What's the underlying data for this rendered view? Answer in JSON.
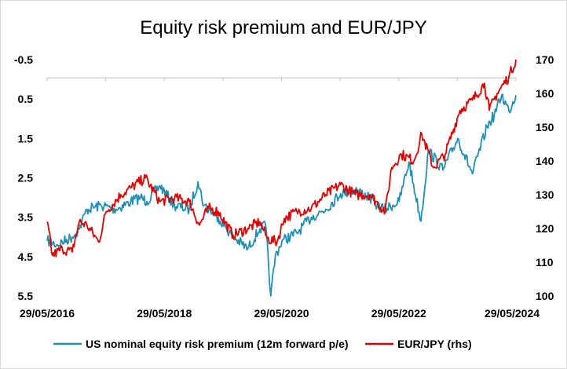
{
  "chart_data": {
    "type": "line",
    "title": "Equity risk premium and EUR/JPY",
    "x_tick_labels": [
      "29/05/2016",
      "29/05/2018",
      "29/05/2020",
      "29/05/2022",
      "29/05/2024"
    ],
    "y_left": {
      "inverted": true,
      "range": [
        -0.5,
        5.5
      ],
      "tick_labels": [
        "-0.5",
        "0.5",
        "1.5",
        "2.5",
        "3.5",
        "4.5",
        "5.5"
      ]
    },
    "y_right": {
      "range": [
        100,
        170
      ],
      "tick_labels": [
        "170",
        "160",
        "150",
        "140",
        "130",
        "120",
        "110",
        "100"
      ]
    },
    "grid": false,
    "legend_position": "bottom",
    "series": [
      {
        "name": "US nominal equity risk premium (12m forward p/e)",
        "axis": "left",
        "color": "#1f8fb4",
        "points": [
          [
            "2016-05-29",
            4.1
          ],
          [
            "2016-08-01",
            4.2
          ],
          [
            "2016-11-01",
            4.0
          ],
          [
            "2016-12-15",
            3.8
          ],
          [
            "2017-02-01",
            3.3
          ],
          [
            "2017-05-01",
            3.2
          ],
          [
            "2017-08-01",
            3.3
          ],
          [
            "2017-11-01",
            3.1
          ],
          [
            "2018-01-01",
            3.0
          ],
          [
            "2018-02-10",
            3.1
          ],
          [
            "2018-05-01",
            2.7
          ],
          [
            "2018-08-01",
            3.2
          ],
          [
            "2018-11-01",
            3.3
          ],
          [
            "2018-12-25",
            2.6
          ],
          [
            "2019-02-01",
            3.2
          ],
          [
            "2019-05-01",
            3.5
          ],
          [
            "2019-08-01",
            4.0
          ],
          [
            "2019-11-01",
            4.3
          ],
          [
            "2020-01-15",
            3.8
          ],
          [
            "2020-02-20",
            3.7
          ],
          [
            "2020-03-23",
            5.5
          ],
          [
            "2020-04-20",
            4.5
          ],
          [
            "2020-06-01",
            4.1
          ],
          [
            "2020-09-01",
            3.9
          ],
          [
            "2020-12-01",
            3.5
          ],
          [
            "2021-03-01",
            3.3
          ],
          [
            "2021-06-01",
            2.9
          ],
          [
            "2021-09-01",
            2.8
          ],
          [
            "2021-12-01",
            3.0
          ],
          [
            "2022-01-15",
            3.2
          ],
          [
            "2022-03-01",
            3.3
          ],
          [
            "2022-06-01",
            3.1
          ],
          [
            "2022-08-01",
            2.1
          ],
          [
            "2022-10-15",
            3.6
          ],
          [
            "2022-12-01",
            1.8
          ],
          [
            "2023-03-01",
            2.3
          ],
          [
            "2023-06-01",
            1.5
          ],
          [
            "2023-09-01",
            2.4
          ],
          [
            "2023-12-01",
            1.2
          ],
          [
            "2024-01-15",
            0.9
          ],
          [
            "2024-03-01",
            0.4
          ],
          [
            "2024-04-15",
            0.8
          ],
          [
            "2024-05-29",
            0.4
          ]
        ]
      },
      {
        "name": "EUR/JPY (rhs)",
        "axis": "right",
        "color": "#e00000",
        "points": [
          [
            "2016-05-29",
            122.0
          ],
          [
            "2016-07-01",
            112.0
          ],
          [
            "2016-09-01",
            114.0
          ],
          [
            "2016-11-01",
            113.0
          ],
          [
            "2016-12-15",
            122.0
          ],
          [
            "2017-02-01",
            121.0
          ],
          [
            "2017-04-15",
            116.0
          ],
          [
            "2017-06-01",
            125.0
          ],
          [
            "2017-09-01",
            130.0
          ],
          [
            "2017-11-01",
            132.0
          ],
          [
            "2018-02-01",
            135.0
          ],
          [
            "2018-05-01",
            128.0
          ],
          [
            "2018-08-01",
            129.0
          ],
          [
            "2018-11-01",
            128.0
          ],
          [
            "2019-01-03",
            121.0
          ],
          [
            "2019-03-01",
            126.0
          ],
          [
            "2019-05-01",
            125.0
          ],
          [
            "2019-08-01",
            118.0
          ],
          [
            "2019-11-01",
            120.0
          ],
          [
            "2020-01-15",
            122.0
          ],
          [
            "2020-03-01",
            117.0
          ],
          [
            "2020-05-01",
            116.0
          ],
          [
            "2020-06-15",
            123.0
          ],
          [
            "2020-09-01",
            125.0
          ],
          [
            "2020-12-01",
            126.0
          ],
          [
            "2021-03-01",
            130.0
          ],
          [
            "2021-06-01",
            133.0
          ],
          [
            "2021-09-01",
            130.0
          ],
          [
            "2021-12-01",
            130.0
          ],
          [
            "2022-03-07",
            125.0
          ],
          [
            "2022-04-15",
            138.0
          ],
          [
            "2022-06-15",
            142.0
          ],
          [
            "2022-09-01",
            140.0
          ],
          [
            "2022-10-20",
            148.0
          ],
          [
            "2023-01-01",
            138.0
          ],
          [
            "2023-03-15",
            142.0
          ],
          [
            "2023-06-15",
            155.0
          ],
          [
            "2023-09-01",
            158.0
          ],
          [
            "2023-11-15",
            163.0
          ],
          [
            "2023-12-15",
            155.0
          ],
          [
            "2024-02-01",
            160.0
          ],
          [
            "2024-04-15",
            165.0
          ],
          [
            "2024-05-29",
            170.0
          ]
        ]
      }
    ]
  }
}
